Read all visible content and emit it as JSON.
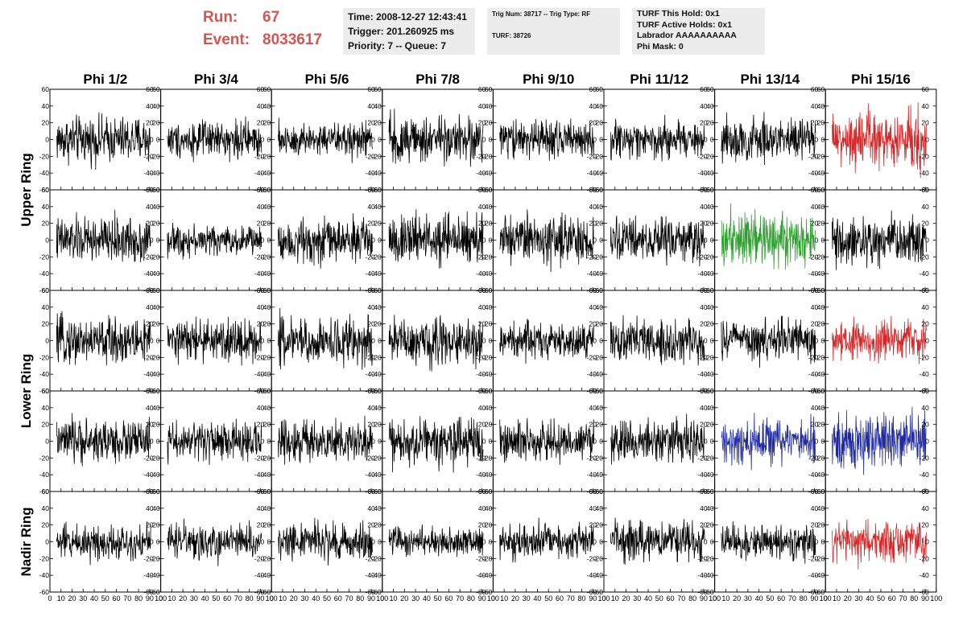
{
  "run_label": "Run:",
  "run_value": "67",
  "event_label": "Event:",
  "event_value": "8033617",
  "info_time": "Time: 2008-12-27 12:43:41",
  "info_trigger": "Trigger: 201.260925 ms",
  "info_priority": "Priority: 7 -- Queue: 7",
  "info_trig_num": "Trig Num: 38717 -- Trig Type: RF",
  "info_turf": "TURF: 38726",
  "info_turf_hold": "TURF This Hold: 0x1",
  "info_turf_active": "TURF Active Holds: 0x1",
  "info_labrador": "Labrador AAAAAAAAAA",
  "info_phi_mask": "Phi Mask: 0",
  "colors": {
    "default": "#000000",
    "red": "#d62728",
    "green": "#2ca02c",
    "blue": "#1f2a9e",
    "title_red": "#d9534f"
  },
  "chart_data": {
    "type": "line",
    "columns": [
      "Phi 1/2",
      "Phi 3/4",
      "Phi 5/6",
      "Phi 7/8",
      "Phi 9/10",
      "Phi 11/12",
      "Phi 13/14",
      "Phi 15/16"
    ],
    "row_groups": [
      {
        "label": "Upper Ring",
        "rows": 2
      },
      {
        "label": "Lower Ring",
        "rows": 2
      },
      {
        "label": "Nadir Ring",
        "rows": 1
      }
    ],
    "xlim": [
      0,
      100
    ],
    "ylim": [
      -60,
      60
    ],
    "x_ticks": [
      0,
      10,
      20,
      30,
      40,
      50,
      60,
      70,
      80,
      90,
      100
    ],
    "x_tick_labels": [
      "0",
      "10",
      "20",
      "30",
      "40",
      "50",
      "60",
      "70",
      "80",
      "90",
      "100"
    ],
    "y_ticks": [
      -60,
      -40,
      -20,
      0,
      20,
      40,
      60
    ],
    "y_tick_labels": [
      "-60",
      "-40",
      "-20",
      "0",
      "20",
      "40",
      "60"
    ],
    "noise_amplitude": [
      [
        14,
        11,
        11,
        14,
        12,
        11,
        14,
        18
      ],
      [
        14,
        9,
        13,
        15,
        15,
        13,
        17,
        15
      ],
      [
        14,
        13,
        15,
        14,
        11,
        13,
        12,
        13
      ],
      [
        13,
        12,
        13,
        14,
        12,
        13,
        14,
        17
      ],
      [
        11,
        11,
        11,
        9,
        11,
        12,
        11,
        13
      ]
    ],
    "trace_colors": [
      [
        "default",
        "default",
        "default",
        "default",
        "default",
        "default",
        "default",
        "red"
      ],
      [
        "default",
        "default",
        "default",
        "default",
        "default",
        "default",
        "green",
        "default"
      ],
      [
        "default",
        "default",
        "default",
        "default",
        "default",
        "default",
        "default",
        "red"
      ],
      [
        "default",
        "default",
        "default",
        "default",
        "default",
        "default",
        "blue",
        "blue"
      ],
      [
        "default",
        "default",
        "default",
        "default",
        "default",
        "default",
        "default",
        "red"
      ]
    ]
  }
}
